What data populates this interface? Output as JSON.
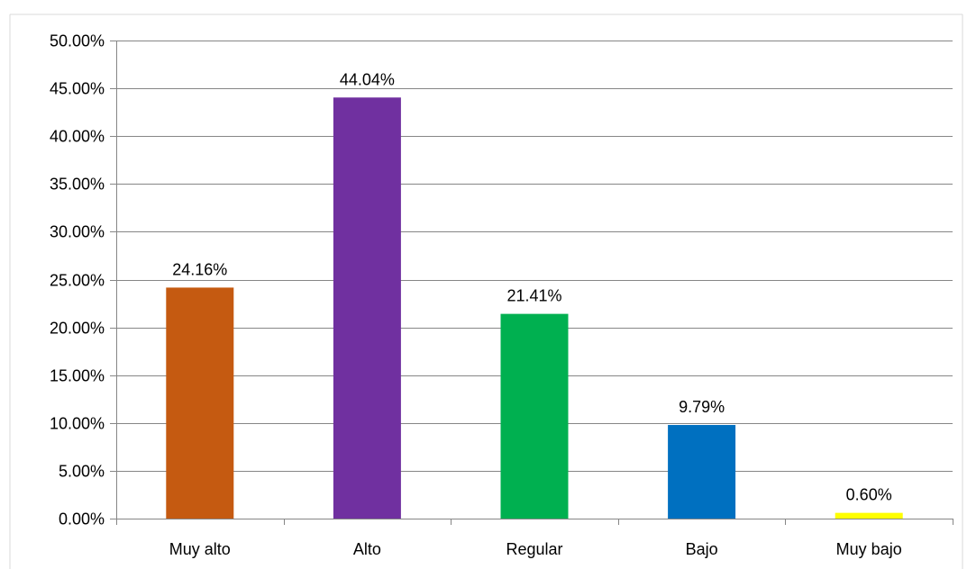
{
  "chart_data": {
    "type": "bar",
    "categories": [
      "Muy alto",
      "Alto",
      "Regular",
      "Bajo",
      "Muy bajo"
    ],
    "values": [
      24.16,
      44.04,
      21.41,
      9.79,
      0.6
    ],
    "value_labels": [
      "24.16%",
      "44.04%",
      "21.41%",
      "9.79%",
      "0.60%"
    ],
    "colors": [
      "#C55A11",
      "#7030A0",
      "#00B050",
      "#0070C0",
      "#FFFF00"
    ],
    "ylim": [
      0,
      50
    ],
    "yticks": [
      0,
      5,
      10,
      15,
      20,
      25,
      30,
      35,
      40,
      45,
      50
    ],
    "ytick_labels": [
      "0.00%",
      "5.00%",
      "10.00%",
      "15.00%",
      "20.00%",
      "25.00%",
      "30.00%",
      "35.00%",
      "40.00%",
      "45.00%",
      "50.00%"
    ],
    "grid": true,
    "gridline_color": "#868686",
    "axis_color": "#868686",
    "title": "",
    "xlabel": "",
    "ylabel": ""
  }
}
